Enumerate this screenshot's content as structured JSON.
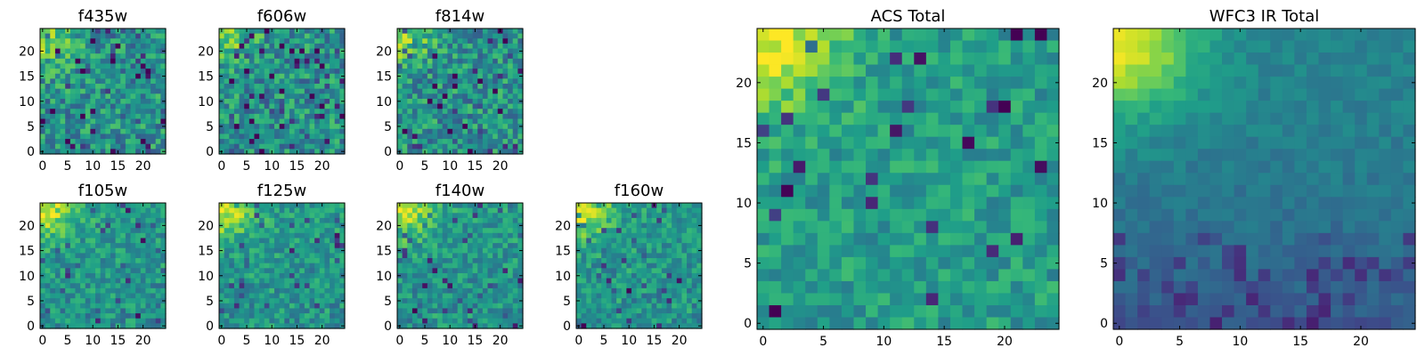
{
  "figure_title": "",
  "chart_data": [
    {
      "type": "heatmap",
      "title": "f435w",
      "size": 25,
      "colormap": "viridis",
      "xticks": [
        "0",
        "5",
        "10",
        "15",
        "20"
      ],
      "yticks": [
        "0",
        "5",
        "10",
        "15",
        "20"
      ],
      "pattern": "noise",
      "seed": 11
    },
    {
      "type": "heatmap",
      "title": "f606w",
      "size": 25,
      "colormap": "viridis",
      "xticks": [
        "0",
        "5",
        "10",
        "15",
        "20"
      ],
      "yticks": [
        "0",
        "5",
        "10",
        "15",
        "20"
      ],
      "pattern": "noise",
      "seed": 23
    },
    {
      "type": "heatmap",
      "title": "f814w",
      "size": 25,
      "colormap": "viridis",
      "xticks": [
        "0",
        "5",
        "10",
        "15",
        "20"
      ],
      "yticks": [
        "0",
        "5",
        "10",
        "15",
        "20"
      ],
      "pattern": "noise",
      "seed": 37
    },
    {
      "type": "heatmap",
      "title": "f105w",
      "size": 25,
      "colormap": "viridis",
      "xticks": [
        "0",
        "5",
        "10",
        "15",
        "20"
      ],
      "yticks": [
        "0",
        "5",
        "10",
        "15",
        "20"
      ],
      "pattern": "smooth",
      "seed": 41
    },
    {
      "type": "heatmap",
      "title": "f125w",
      "size": 25,
      "colormap": "viridis",
      "xticks": [
        "0",
        "5",
        "10",
        "15",
        "20"
      ],
      "yticks": [
        "0",
        "5",
        "10",
        "15",
        "20"
      ],
      "pattern": "smooth",
      "seed": 53
    },
    {
      "type": "heatmap",
      "title": "f140w",
      "size": 25,
      "colormap": "viridis",
      "xticks": [
        "0",
        "5",
        "10",
        "15",
        "20"
      ],
      "yticks": [
        "0",
        "5",
        "10",
        "15",
        "20"
      ],
      "pattern": "smooth",
      "seed": 67
    },
    {
      "type": "heatmap",
      "title": "f160w",
      "size": 25,
      "colormap": "viridis",
      "xticks": [
        "0",
        "5",
        "10",
        "15",
        "20"
      ],
      "yticks": [
        "0",
        "5",
        "10",
        "15",
        "20"
      ],
      "pattern": "smooth",
      "seed": 79
    },
    {
      "type": "heatmap",
      "title": "ACS Total",
      "size": 25,
      "colormap": "viridis",
      "xticks": [
        "0",
        "5",
        "10",
        "15",
        "20"
      ],
      "yticks": [
        "0",
        "5",
        "10",
        "15",
        "20"
      ],
      "pattern": "acs",
      "seed": 83
    },
    {
      "type": "heatmap",
      "title": "WFC3 IR Total",
      "size": 25,
      "colormap": "viridis",
      "xticks": [
        "0",
        "5",
        "10",
        "15",
        "20"
      ],
      "yticks": [
        "0",
        "5",
        "10",
        "15",
        "20"
      ],
      "pattern": "ir",
      "seed": 97
    }
  ]
}
